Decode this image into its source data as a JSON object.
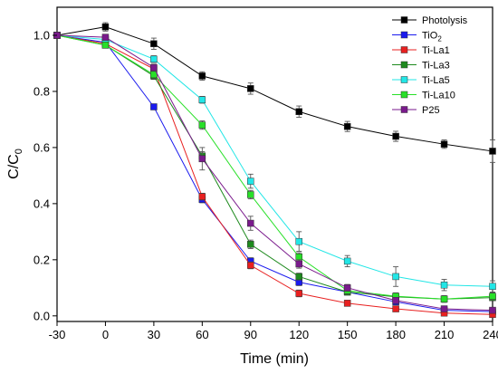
{
  "chart_data": {
    "type": "line",
    "xlabel": "Time (min)",
    "ylabel_main": "C/C",
    "ylabel_sub": "0",
    "xlim": [
      -30,
      240
    ],
    "ylim": [
      -0.02,
      1.1
    ],
    "xticks": [
      -30,
      0,
      30,
      60,
      90,
      120,
      150,
      180,
      210,
      240
    ],
    "yticks": [
      0.0,
      0.2,
      0.4,
      0.6,
      0.8,
      1.0
    ],
    "ytick_labels": [
      "0.0",
      "0.2",
      "0.4",
      "0.6",
      "0.8",
      "1.0"
    ],
    "legend_position": "top-right",
    "x": [
      -30,
      0,
      30,
      60,
      90,
      120,
      150,
      180,
      210,
      240
    ],
    "series": [
      {
        "name": "Photolysis",
        "name_sub": "",
        "color": "#000000",
        "values": [
          1.0,
          1.03,
          0.97,
          0.855,
          0.81,
          0.728,
          0.675,
          0.64,
          0.612,
          0.587
        ],
        "errors": [
          0.0,
          0.015,
          0.02,
          0.015,
          0.02,
          0.02,
          0.018,
          0.018,
          0.015,
          0.04
        ]
      },
      {
        "name": "TiO",
        "name_sub": "2",
        "color": "#1a1aee",
        "values": [
          1.0,
          0.975,
          0.745,
          0.415,
          0.195,
          0.12,
          0.085,
          0.05,
          0.02,
          0.015
        ],
        "errors": [
          0.0,
          0.012,
          0.01,
          0.012,
          0.012,
          0.012,
          0.01,
          0.01,
          0.008,
          0.008
        ]
      },
      {
        "name": "Ti-La1",
        "name_sub": "",
        "color": "#e82020",
        "values": [
          1.0,
          0.97,
          0.88,
          0.425,
          0.18,
          0.08,
          0.045,
          0.025,
          0.01,
          0.005
        ],
        "errors": [
          0.0,
          0.01,
          0.012,
          0.012,
          0.012,
          0.012,
          0.01,
          0.008,
          0.006,
          0.005
        ]
      },
      {
        "name": "Ti-La3",
        "name_sub": "",
        "color": "#1e8a1e",
        "values": [
          1.0,
          0.965,
          0.855,
          0.57,
          0.255,
          0.14,
          0.085,
          0.068,
          0.06,
          0.065
        ],
        "errors": [
          0.0,
          0.01,
          0.012,
          0.015,
          0.015,
          0.012,
          0.01,
          0.01,
          0.01,
          0.01
        ]
      },
      {
        "name": "Ti-La5",
        "name_sub": "",
        "color": "#22e6e6",
        "values": [
          1.0,
          0.985,
          0.915,
          0.77,
          0.48,
          0.265,
          0.195,
          0.14,
          0.11,
          0.105
        ],
        "errors": [
          0.0,
          0.01,
          0.012,
          0.012,
          0.025,
          0.035,
          0.02,
          0.035,
          0.02,
          0.02
        ]
      },
      {
        "name": "Ti-La10",
        "name_sub": "",
        "color": "#28e028",
        "values": [
          1.0,
          0.965,
          0.86,
          0.68,
          0.432,
          0.21,
          0.09,
          0.07,
          0.06,
          0.07
        ],
        "errors": [
          0.0,
          0.01,
          0.012,
          0.015,
          0.015,
          0.015,
          0.012,
          0.012,
          0.012,
          0.012
        ]
      },
      {
        "name": "P25",
        "name_sub": "",
        "color": "#7a1a8c",
        "values": [
          1.0,
          0.993,
          0.885,
          0.56,
          0.33,
          0.185,
          0.1,
          0.055,
          0.025,
          0.02
        ],
        "errors": [
          0.0,
          0.01,
          0.012,
          0.04,
          0.025,
          0.015,
          0.012,
          0.01,
          0.008,
          0.008
        ]
      }
    ]
  }
}
